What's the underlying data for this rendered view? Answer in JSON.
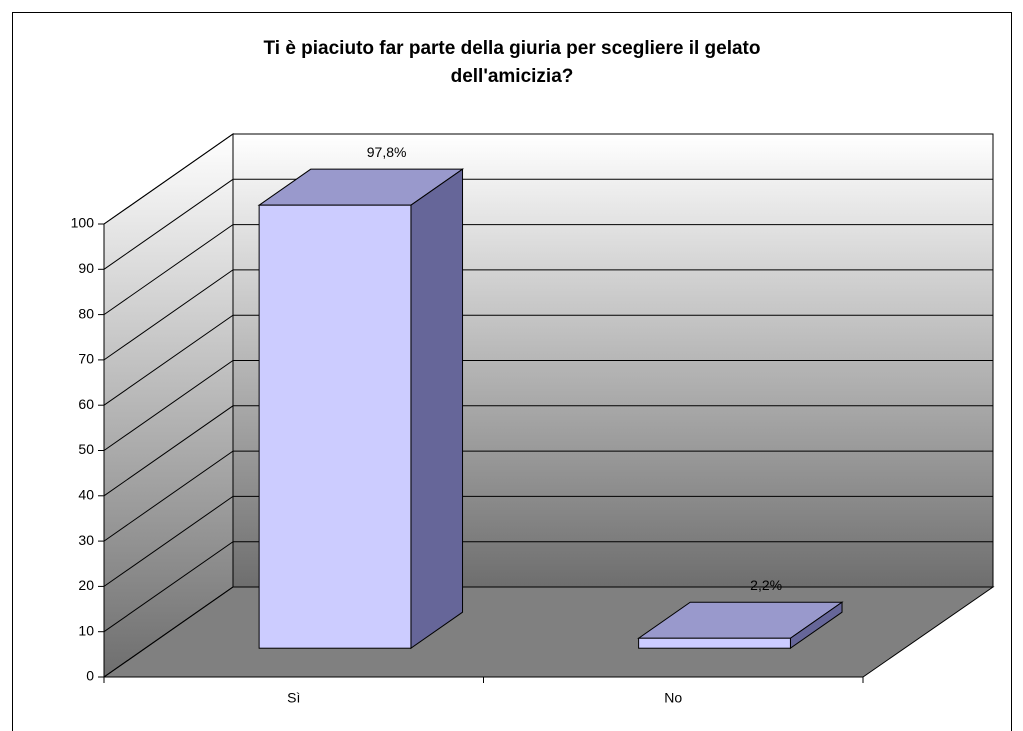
{
  "chart_data": {
    "type": "bar3d",
    "title": "Ti è piaciuto far parte della giuria per scegliere il gelato dell'amicizia?",
    "categories": [
      "Sì",
      "No"
    ],
    "values": [
      97.8,
      2.2
    ],
    "value_labels": [
      "97,8%",
      "2,2%"
    ],
    "color": "#ccccff",
    "ylim": [
      0,
      100
    ],
    "yticks": [
      0,
      10,
      20,
      30,
      40,
      50,
      60,
      70,
      80,
      90,
      100
    ],
    "grid": true
  }
}
